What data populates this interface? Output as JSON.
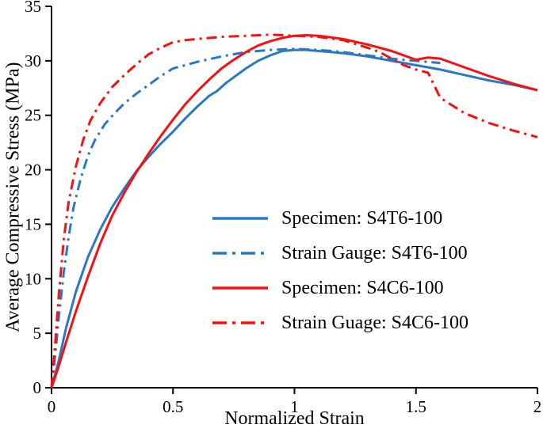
{
  "chart_data": {
    "type": "line",
    "title": "",
    "xlabel": "Normalized Strain",
    "ylabel": "Average Compressive Stress (MPa)",
    "xlim": [
      0,
      2
    ],
    "ylim": [
      0,
      35
    ],
    "x_ticks": [
      0,
      0.5,
      1,
      1.5,
      2
    ],
    "x_tick_labels": [
      "0",
      "0.5",
      "1",
      "1.5",
      "2"
    ],
    "y_ticks": [
      0,
      5,
      10,
      15,
      20,
      25,
      30,
      35
    ],
    "y_tick_labels": [
      "0",
      "5",
      "10",
      "15",
      "20",
      "25",
      "30",
      "35"
    ],
    "grid": false,
    "legend_position": "inside-lower-right",
    "axis_color": "#000000",
    "series": [
      {
        "name": "Specimen: S4T6-100",
        "color": "#2878C8",
        "style": "solid",
        "x": [
          0,
          0.03,
          0.06,
          0.1,
          0.15,
          0.2,
          0.25,
          0.3,
          0.35,
          0.4,
          0.45,
          0.5,
          0.55,
          0.6,
          0.65,
          0.68,
          0.72,
          0.8,
          0.85,
          0.9,
          0.95,
          1.0,
          1.05,
          1.1,
          1.15,
          1.2,
          1.3,
          1.4,
          1.5,
          1.6,
          1.7,
          1.8,
          1.9,
          2.0
        ],
        "y": [
          0,
          2.5,
          5.5,
          8.8,
          12.0,
          14.5,
          16.6,
          18.3,
          19.9,
          21.2,
          22.4,
          23.5,
          24.7,
          25.8,
          26.8,
          27.2,
          28.0,
          29.3,
          30.0,
          30.5,
          30.9,
          31.0,
          31.0,
          30.9,
          30.8,
          30.7,
          30.4,
          30.0,
          29.6,
          29.2,
          28.7,
          28.2,
          27.8,
          27.3
        ]
      },
      {
        "name": "Strain Gauge: S4T6-100",
        "color": "#2878C8",
        "style": "dashdot",
        "x": [
          0,
          0.015,
          0.03,
          0.05,
          0.07,
          0.09,
          0.12,
          0.15,
          0.18,
          0.22,
          0.26,
          0.3,
          0.35,
          0.4,
          0.45,
          0.5,
          0.55,
          0.6,
          0.7,
          0.8,
          0.9,
          1.0,
          1.1,
          1.2,
          1.3,
          1.4,
          1.5,
          1.6
        ],
        "y": [
          0,
          3.0,
          6.5,
          10.5,
          13.8,
          16.5,
          19.2,
          21.3,
          22.8,
          24.2,
          25.2,
          26.1,
          27.0,
          27.8,
          28.6,
          29.3,
          29.6,
          29.9,
          30.4,
          30.8,
          31.0,
          31.1,
          31.0,
          30.8,
          30.5,
          30.2,
          30.0,
          29.8
        ]
      },
      {
        "name": "Specimen: S4C6-100",
        "color": "#F90F0F",
        "style": "solid",
        "x": [
          0,
          0.03,
          0.06,
          0.1,
          0.15,
          0.2,
          0.25,
          0.3,
          0.35,
          0.4,
          0.45,
          0.5,
          0.55,
          0.6,
          0.65,
          0.7,
          0.75,
          0.8,
          0.85,
          0.9,
          0.95,
          1.0,
          1.05,
          1.1,
          1.2,
          1.3,
          1.4,
          1.45,
          1.5,
          1.55,
          1.6,
          1.7,
          1.8,
          1.9,
          2.0
        ],
        "y": [
          0,
          2.0,
          4.2,
          7.0,
          10.2,
          13.2,
          15.8,
          17.9,
          19.8,
          21.5,
          23.1,
          24.6,
          26.0,
          27.2,
          28.3,
          29.3,
          30.1,
          30.8,
          31.4,
          31.8,
          32.1,
          32.3,
          32.35,
          32.3,
          32.0,
          31.5,
          30.9,
          30.5,
          30.1,
          30.3,
          30.2,
          29.4,
          28.6,
          27.9,
          27.3
        ]
      },
      {
        "name": "Strain Guage: S4C6-100",
        "color": "#F90F0F",
        "style": "dashdot",
        "x": [
          0,
          0.015,
          0.03,
          0.05,
          0.07,
          0.1,
          0.13,
          0.16,
          0.2,
          0.25,
          0.3,
          0.35,
          0.4,
          0.45,
          0.5,
          0.55,
          0.6,
          0.7,
          0.8,
          0.9,
          1.0,
          1.1,
          1.2,
          1.3,
          1.35,
          1.4,
          1.45,
          1.5,
          1.55,
          1.6,
          1.7,
          1.8,
          1.9,
          2.0
        ],
        "y": [
          0,
          4.0,
          8.5,
          13.5,
          17.0,
          20.3,
          22.7,
          24.5,
          26.1,
          27.6,
          28.7,
          29.7,
          30.6,
          31.2,
          31.7,
          31.9,
          32.0,
          32.2,
          32.3,
          32.4,
          32.3,
          32.2,
          31.9,
          31.2,
          30.8,
          30.2,
          29.6,
          29.2,
          28.9,
          26.6,
          25.2,
          24.3,
          23.6,
          23.0
        ]
      }
    ]
  }
}
